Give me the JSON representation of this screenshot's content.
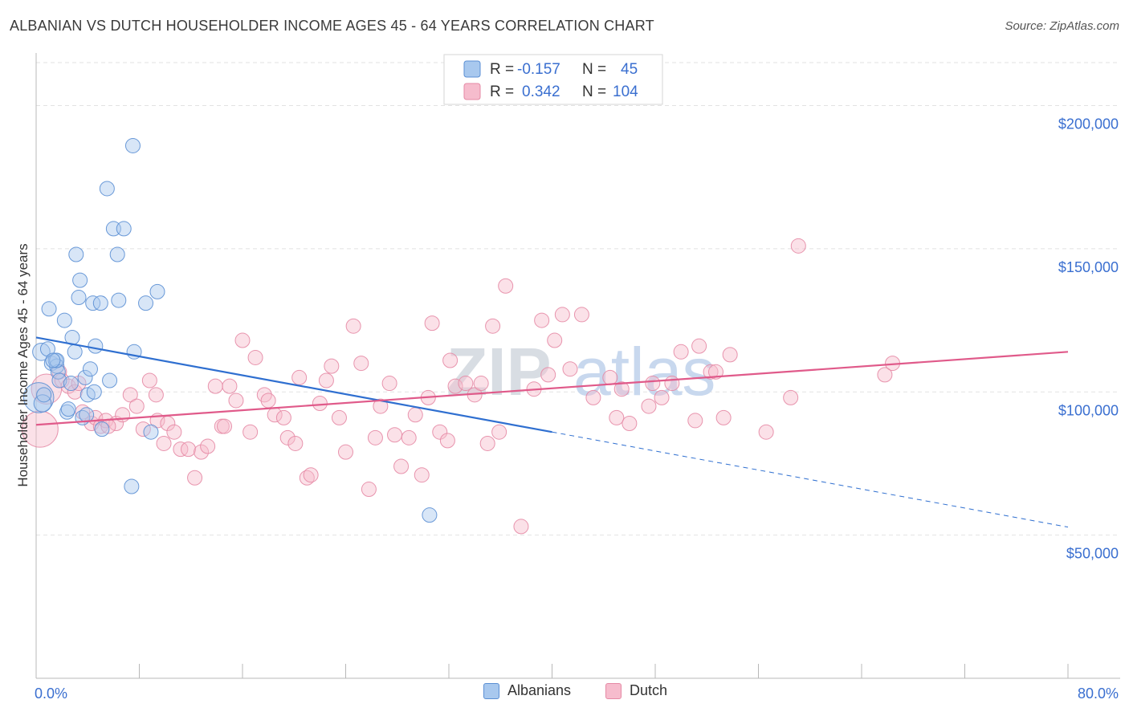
{
  "header": {
    "title": "ALBANIAN VS DUTCH HOUSEHOLDER INCOME AGES 45 - 64 YEARS CORRELATION CHART",
    "source": "Source: ZipAtlas.com"
  },
  "legend_top": {
    "rows": [
      {
        "r_label": "R =",
        "r_value": "-0.157",
        "n_label": "N =",
        "n_value": "45"
      },
      {
        "r_label": "R =",
        "r_value": "0.342",
        "n_label": "N =",
        "n_value": "104"
      }
    ]
  },
  "legend_bottom": {
    "albanians": "Albanians",
    "dutch": "Dutch"
  },
  "watermark": {
    "part1": "ZIP",
    "part2": "atlas"
  },
  "colors": {
    "albanians_fill": "#a8c8ee",
    "albanians_stroke": "#5b8fd4",
    "albanians_line": "#2f6fd0",
    "dutch_fill": "#f6bccd",
    "dutch_stroke": "#e58aa5",
    "dutch_line": "#e05a8a",
    "axis_label": "#3a6fd0",
    "grid": "#e2e2e2"
  },
  "chart_data": {
    "type": "scatter",
    "title": "ALBANIAN VS DUTCH HOUSEHOLDER INCOME AGES 45 - 64 YEARS CORRELATION CHART",
    "xlabel": "",
    "ylabel": "Householder Income Ages 45 - 64 years",
    "xlim": [
      0,
      80
    ],
    "ylim": [
      0,
      215000
    ],
    "x_tick_labels": [
      "0.0%",
      "80.0%"
    ],
    "y_ticks": [
      50000,
      100000,
      150000,
      200000
    ],
    "y_tick_labels": [
      "$50,000",
      "$100,000",
      "$150,000",
      "$200,000"
    ],
    "grid": true,
    "legend_position": "top-center",
    "series": [
      {
        "name": "Albanians",
        "r": -0.157,
        "n": 45,
        "trend": {
          "x0": 0,
          "y0": 119000,
          "x1": 40,
          "y1": 86000,
          "dash_to_x": 80,
          "dash_to_y": 52800
        },
        "points": [
          [
            0.2,
            98000
          ],
          [
            0.5,
            96000
          ],
          [
            0.4,
            114000
          ],
          [
            0.9,
            115000
          ],
          [
            1.0,
            129000
          ],
          [
            1.2,
            110000
          ],
          [
            1.5,
            111000
          ],
          [
            1.6,
            109000
          ],
          [
            1.7,
            107000
          ],
          [
            1.8,
            104000
          ],
          [
            2.2,
            125000
          ],
          [
            2.4,
            93000
          ],
          [
            2.7,
            103000
          ],
          [
            2.8,
            119000
          ],
          [
            3.1,
            148000
          ],
          [
            3.0,
            114000
          ],
          [
            3.3,
            133000
          ],
          [
            3.4,
            139000
          ],
          [
            3.6,
            91000
          ],
          [
            3.8,
            105000
          ],
          [
            4.0,
            99000
          ],
          [
            4.2,
            108000
          ],
          [
            4.4,
            131000
          ],
          [
            4.5,
            100000
          ],
          [
            4.6,
            116000
          ],
          [
            5.0,
            131000
          ],
          [
            5.1,
            87000
          ],
          [
            5.5,
            171000
          ],
          [
            5.7,
            104000
          ],
          [
            6.0,
            157000
          ],
          [
            6.3,
            148000
          ],
          [
            6.4,
            132000
          ],
          [
            6.8,
            157000
          ],
          [
            7.4,
            67000
          ],
          [
            7.5,
            186000
          ],
          [
            7.6,
            114000
          ],
          [
            8.5,
            131000
          ],
          [
            8.9,
            86000
          ],
          [
            9.4,
            135000
          ],
          [
            30.5,
            57000
          ],
          [
            1.6,
            111000
          ],
          [
            2.5,
            94000
          ],
          [
            0.6,
            99000
          ],
          [
            1.3,
            111000
          ],
          [
            3.9,
            92000
          ]
        ],
        "sizes": [
          30,
          12,
          12,
          10,
          10,
          10,
          10,
          10,
          10,
          10,
          10,
          10,
          10,
          10,
          10,
          10,
          10,
          10,
          10,
          10,
          10,
          10,
          10,
          10,
          10,
          10,
          10,
          10,
          10,
          10,
          10,
          10,
          10,
          10,
          10,
          10,
          10,
          10,
          10,
          10,
          10,
          10,
          10,
          10,
          10
        ]
      },
      {
        "name": "Dutch",
        "r": 0.342,
        "n": 104,
        "trend": {
          "x0": 0,
          "y0": 88500,
          "x1": 80,
          "y1": 114000
        },
        "points": [
          [
            0.3,
            87000
          ],
          [
            0.8,
            101000
          ],
          [
            1.8,
            107000
          ],
          [
            2.0,
            104000
          ],
          [
            2.5,
            102000
          ],
          [
            3.0,
            100000
          ],
          [
            3.6,
            93000
          ],
          [
            4.3,
            89000
          ],
          [
            4.6,
            91000
          ],
          [
            5.0,
            88000
          ],
          [
            5.4,
            90000
          ],
          [
            6.2,
            89000
          ],
          [
            6.7,
            92000
          ],
          [
            7.3,
            99000
          ],
          [
            7.8,
            95000
          ],
          [
            8.3,
            87000
          ],
          [
            8.8,
            104000
          ],
          [
            9.4,
            90000
          ],
          [
            9.9,
            82000
          ],
          [
            10.2,
            89000
          ],
          [
            10.7,
            86000
          ],
          [
            11.2,
            80000
          ],
          [
            11.8,
            80000
          ],
          [
            12.3,
            70000
          ],
          [
            12.8,
            79000
          ],
          [
            13.3,
            81000
          ],
          [
            13.9,
            102000
          ],
          [
            14.4,
            88000
          ],
          [
            15.0,
            102000
          ],
          [
            15.5,
            97000
          ],
          [
            16.0,
            118000
          ],
          [
            16.6,
            86000
          ],
          [
            17.0,
            112000
          ],
          [
            17.7,
            99000
          ],
          [
            18.0,
            97000
          ],
          [
            18.5,
            92000
          ],
          [
            19.2,
            91000
          ],
          [
            19.5,
            84000
          ],
          [
            20.1,
            82000
          ],
          [
            20.4,
            105000
          ],
          [
            21.0,
            70000
          ],
          [
            21.3,
            71000
          ],
          [
            22.0,
            96000
          ],
          [
            22.5,
            104000
          ],
          [
            22.9,
            109000
          ],
          [
            23.5,
            91000
          ],
          [
            24.0,
            79000
          ],
          [
            24.6,
            123000
          ],
          [
            25.2,
            110000
          ],
          [
            25.8,
            66000
          ],
          [
            26.3,
            84000
          ],
          [
            26.7,
            95000
          ],
          [
            27.4,
            103000
          ],
          [
            27.8,
            85000
          ],
          [
            28.3,
            74000
          ],
          [
            28.9,
            84000
          ],
          [
            29.4,
            92000
          ],
          [
            29.9,
            71000
          ],
          [
            30.4,
            98000
          ],
          [
            30.7,
            124000
          ],
          [
            31.3,
            86000
          ],
          [
            31.9,
            83000
          ],
          [
            32.1,
            111000
          ],
          [
            32.5,
            102000
          ],
          [
            33.3,
            103000
          ],
          [
            34.0,
            99000
          ],
          [
            35.0,
            82000
          ],
          [
            35.4,
            123000
          ],
          [
            35.9,
            86000
          ],
          [
            36.4,
            137000
          ],
          [
            37.6,
            53000
          ],
          [
            38.6,
            101000
          ],
          [
            39.2,
            125000
          ],
          [
            39.7,
            106000
          ],
          [
            40.2,
            118000
          ],
          [
            40.8,
            127000
          ],
          [
            41.4,
            108000
          ],
          [
            42.3,
            127000
          ],
          [
            43.2,
            98000
          ],
          [
            44.5,
            105000
          ],
          [
            45.0,
            91000
          ],
          [
            45.4,
            101000
          ],
          [
            46.0,
            89000
          ],
          [
            47.5,
            95000
          ],
          [
            47.8,
            103000
          ],
          [
            48.5,
            98000
          ],
          [
            49.3,
            103000
          ],
          [
            50.0,
            114000
          ],
          [
            51.1,
            90000
          ],
          [
            51.4,
            116000
          ],
          [
            52.3,
            107000
          ],
          [
            52.7,
            107000
          ],
          [
            53.3,
            91000
          ],
          [
            53.8,
            113000
          ],
          [
            56.6,
            86000
          ],
          [
            58.5,
            98000
          ],
          [
            59.1,
            151000
          ],
          [
            65.8,
            106000
          ],
          [
            66.4,
            110000
          ],
          [
            9.3,
            99000
          ],
          [
            3.3,
            103000
          ],
          [
            5.6,
            88000
          ],
          [
            14.6,
            88000
          ],
          [
            34.5,
            103000
          ]
        ],
        "sizes": [
          36,
          30,
          10,
          10,
          10,
          10,
          10,
          10,
          10,
          10,
          10,
          10,
          10,
          10,
          10,
          10,
          10,
          10,
          10,
          10,
          10,
          10,
          10,
          10,
          10,
          10,
          10,
          10,
          10,
          10,
          10,
          10,
          10,
          10,
          10,
          10,
          10,
          10,
          10,
          10,
          10,
          10,
          10,
          10,
          10,
          10,
          10,
          10,
          10,
          10,
          10,
          10,
          10,
          10,
          10,
          10,
          10,
          10,
          10,
          10,
          10,
          10,
          10,
          10,
          10,
          10,
          10,
          10,
          10,
          10,
          10,
          10,
          10,
          10,
          10,
          10,
          10,
          10,
          10,
          10,
          10,
          10,
          10,
          10,
          10,
          10,
          10,
          10,
          10,
          10,
          10,
          10,
          10,
          10,
          10,
          10,
          10,
          10,
          10,
          10,
          10,
          10,
          10,
          10
        ]
      }
    ]
  }
}
